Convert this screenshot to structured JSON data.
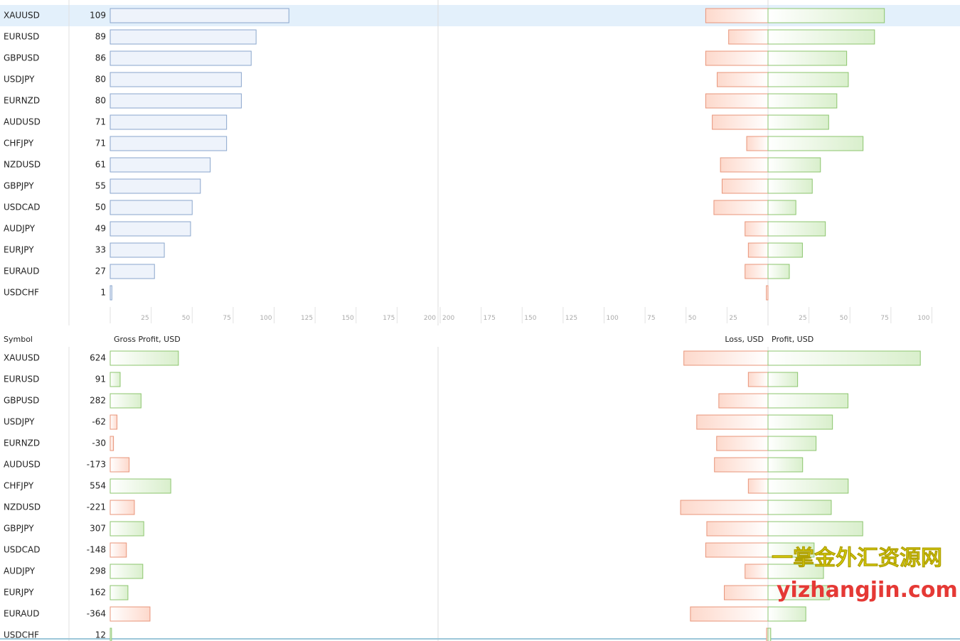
{
  "top": {
    "xlim": [
      0,
      200
    ],
    "count_ticks": [
      25,
      50,
      75,
      100,
      125,
      150,
      175,
      200
    ],
    "loss_ticks": [
      200,
      175,
      150,
      125,
      100,
      75,
      50,
      25
    ],
    "profit_ticks": [
      25,
      50,
      75,
      100
    ],
    "rows": [
      {
        "symbol": "XAUUSD",
        "value": 109,
        "loss": 38,
        "profit": 71
      },
      {
        "symbol": "EURUSD",
        "value": 89,
        "loss": 24,
        "profit": 65
      },
      {
        "symbol": "GBPUSD",
        "value": 86,
        "loss": 38,
        "profit": 48
      },
      {
        "symbol": "USDJPY",
        "value": 80,
        "loss": 31,
        "profit": 49
      },
      {
        "symbol": "EURNZD",
        "value": 80,
        "loss": 38,
        "profit": 42
      },
      {
        "symbol": "AUDUSD",
        "value": 71,
        "loss": 34,
        "profit": 37
      },
      {
        "symbol": "CHFJPY",
        "value": 71,
        "loss": 13,
        "profit": 58
      },
      {
        "symbol": "NZDUSD",
        "value": 61,
        "loss": 29,
        "profit": 32
      },
      {
        "symbol": "GBPJPY",
        "value": 55,
        "loss": 28,
        "profit": 27
      },
      {
        "symbol": "USDCAD",
        "value": 50,
        "loss": 33,
        "profit": 17
      },
      {
        "symbol": "AUDJPY",
        "value": 49,
        "loss": 14,
        "profit": 35
      },
      {
        "symbol": "EURJPY",
        "value": 33,
        "loss": 12,
        "profit": 21
      },
      {
        "symbol": "EURAUD",
        "value": 27,
        "loss": 14,
        "profit": 13
      },
      {
        "symbol": "USDCHF",
        "value": 1,
        "loss": 1,
        "profit": 0
      }
    ]
  },
  "bottom": {
    "symbol_header": "Symbol",
    "value_header": "Gross Profit, USD",
    "loss_header": "Loss, USD",
    "profit_header": "Profit, USD",
    "xlim": [
      0,
      3000
    ],
    "rows": [
      {
        "symbol": "XAUUSD",
        "value": 624,
        "loss": 770,
        "profit": 1394
      },
      {
        "symbol": "EURUSD",
        "value": 91,
        "loss": 180,
        "profit": 271
      },
      {
        "symbol": "GBPUSD",
        "value": 282,
        "loss": 450,
        "profit": 732
      },
      {
        "symbol": "USDJPY",
        "value": -62,
        "loss": 652,
        "profit": 590
      },
      {
        "symbol": "EURNZD",
        "value": -30,
        "loss": 470,
        "profit": 440
      },
      {
        "symbol": "AUDUSD",
        "value": -173,
        "loss": 490,
        "profit": 317
      },
      {
        "symbol": "CHFJPY",
        "value": 554,
        "loss": 180,
        "profit": 734
      },
      {
        "symbol": "NZDUSD",
        "value": -221,
        "loss": 800,
        "profit": 579
      },
      {
        "symbol": "GBPJPY",
        "value": 307,
        "loss": 560,
        "profit": 867
      },
      {
        "symbol": "USDCAD",
        "value": -148,
        "loss": 570,
        "profit": 422
      },
      {
        "symbol": "AUDJPY",
        "value": 298,
        "loss": 210,
        "profit": 508
      },
      {
        "symbol": "EURJPY",
        "value": 162,
        "loss": 400,
        "profit": 562
      },
      {
        "symbol": "EURAUD",
        "value": -364,
        "loss": 710,
        "profit": 346
      },
      {
        "symbol": "USDCHF",
        "value": 12,
        "loss": 13,
        "profit": 25
      }
    ]
  },
  "watermark": {
    "line1": "一掌金外汇资源网",
    "line2": "yizhangjin.com"
  }
}
